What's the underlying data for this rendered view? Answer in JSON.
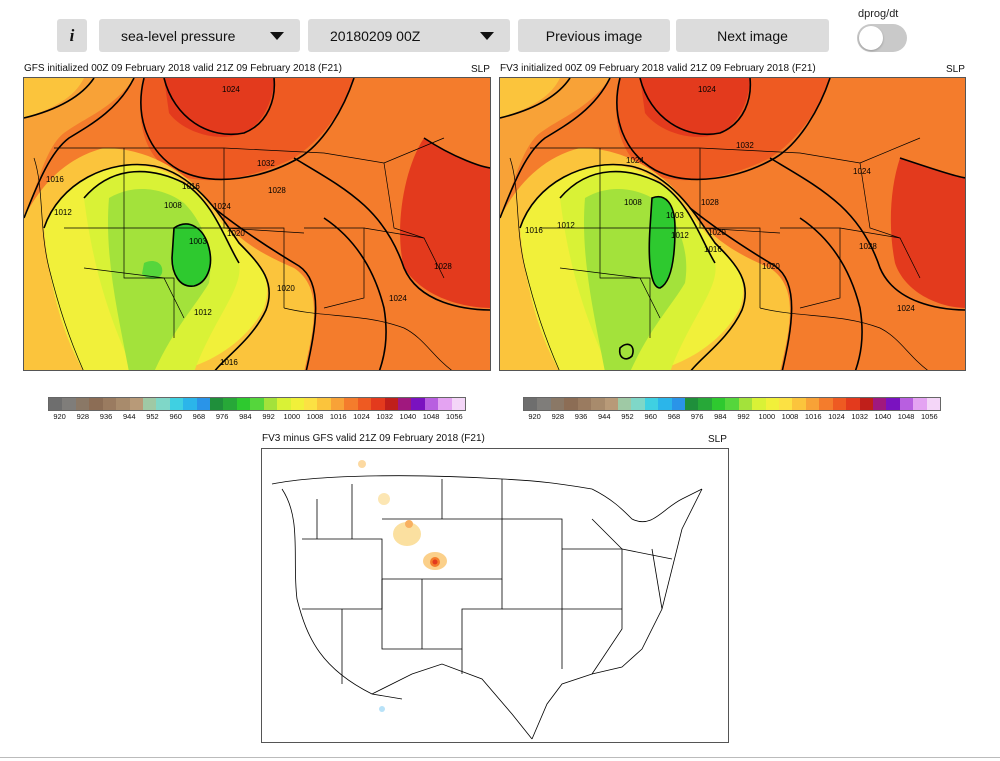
{
  "toolbar": {
    "info_label": "i",
    "field_select": "sea-level pressure",
    "date_select": "20180209 00Z",
    "previous_label": "Previous image",
    "next_label": "Next image",
    "toggle_label": "dprog/dt",
    "toggle_on": false
  },
  "panels": {
    "gfs": {
      "title": "GFS initialized 00Z 09 February 2018 valid 21Z 09 February 2018 (F21)",
      "field_code": "SLP",
      "contour_labels": [
        "1024",
        "1032",
        "1016",
        "1012",
        "1008",
        "1016",
        "1028",
        "1024",
        "1003",
        "1020",
        "1020",
        "1028",
        "1024",
        "1012",
        "1016"
      ]
    },
    "fv3": {
      "title": "FV3 initialized 00Z 09 February 2018 valid 21Z 09 February 2018 (F21)",
      "field_code": "SLP",
      "contour_labels": [
        "1024",
        "1032",
        "1024",
        "1024",
        "1016",
        "1012",
        "1008",
        "1003",
        "1028",
        "1012",
        "1020",
        "1016",
        "1028",
        "1020",
        "1024"
      ]
    },
    "diff": {
      "title": "FV3 minus GFS valid 21Z 09 February 2018 (F21)",
      "field_code": "SLP"
    }
  },
  "colorbar": {
    "colors": [
      "#6e6e6e",
      "#7f7d7a",
      "#8a7866",
      "#8c6d55",
      "#9a7b60",
      "#a88b6c",
      "#b89a78",
      "#9fc9a5",
      "#7fd7c8",
      "#3fd0e2",
      "#2bb5ea",
      "#2a94e8",
      "#1f8f3b",
      "#27a838",
      "#2ec92f",
      "#55d63c",
      "#a3e23b",
      "#d9f236",
      "#f1f03a",
      "#fce143",
      "#fbc43c",
      "#f8a237",
      "#f47c2c",
      "#ee5a22",
      "#e33a1d",
      "#c01f1a",
      "#a0187e",
      "#7a12c0",
      "#b85fe0",
      "#e4a3f2",
      "#f4d6f8"
    ],
    "tick_labels": [
      "920",
      "928",
      "936",
      "944",
      "952",
      "960",
      "968",
      "976",
      "984",
      "992",
      "1000",
      "1008",
      "1016",
      "1024",
      "1032",
      "1040",
      "1048",
      "1056"
    ]
  }
}
